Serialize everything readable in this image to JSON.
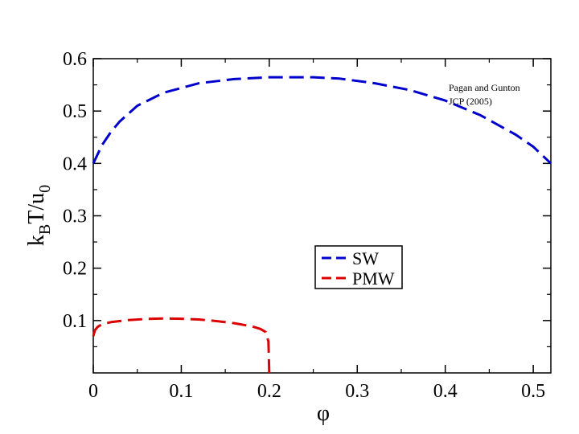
{
  "chart_data": {
    "type": "line",
    "title": "",
    "xlabel": "φ",
    "ylabel": {
      "k": "k",
      "sub_b": "B",
      "mid": "T/u",
      "sub_0": "0"
    },
    "xlim": [
      0,
      0.52
    ],
    "ylim": [
      0,
      0.6
    ],
    "x_ticks": [
      "0",
      "0.1",
      "0.2",
      "0.3",
      "0.4",
      "0.5"
    ],
    "y_ticks": [
      "0.1",
      "0.2",
      "0.3",
      "0.4",
      "0.5",
      "0.6"
    ],
    "grid": false,
    "legend_position": "center-right",
    "annotation": [
      "Pagan and Gunton",
      "JCP (2005)"
    ],
    "series": [
      {
        "name": "SW",
        "color": "#0000cc",
        "dash": "dashed",
        "points": [
          [
            0.0,
            0.4
          ],
          [
            0.01,
            0.435
          ],
          [
            0.02,
            0.46
          ],
          [
            0.03,
            0.48
          ],
          [
            0.05,
            0.51
          ],
          [
            0.08,
            0.535
          ],
          [
            0.12,
            0.553
          ],
          [
            0.16,
            0.561
          ],
          [
            0.2,
            0.5645
          ],
          [
            0.25,
            0.5645
          ],
          [
            0.28,
            0.562
          ],
          [
            0.32,
            0.553
          ],
          [
            0.36,
            0.54
          ],
          [
            0.4,
            0.52
          ],
          [
            0.44,
            0.492
          ],
          [
            0.48,
            0.455
          ],
          [
            0.5,
            0.432
          ],
          [
            0.52,
            0.4
          ]
        ]
      },
      {
        "name": "PMW",
        "color": "#dd0000",
        "dash": "dashed",
        "points": [
          [
            0.0,
            0.07
          ],
          [
            0.002,
            0.082
          ],
          [
            0.005,
            0.088
          ],
          [
            0.01,
            0.093
          ],
          [
            0.02,
            0.097
          ],
          [
            0.04,
            0.101
          ],
          [
            0.06,
            0.103
          ],
          [
            0.08,
            0.104
          ],
          [
            0.1,
            0.1035
          ],
          [
            0.12,
            0.102
          ],
          [
            0.14,
            0.099
          ],
          [
            0.16,
            0.095
          ],
          [
            0.18,
            0.089
          ],
          [
            0.19,
            0.084
          ],
          [
            0.196,
            0.078
          ],
          [
            0.199,
            0.06
          ],
          [
            0.2,
            0.0
          ]
        ]
      }
    ]
  }
}
